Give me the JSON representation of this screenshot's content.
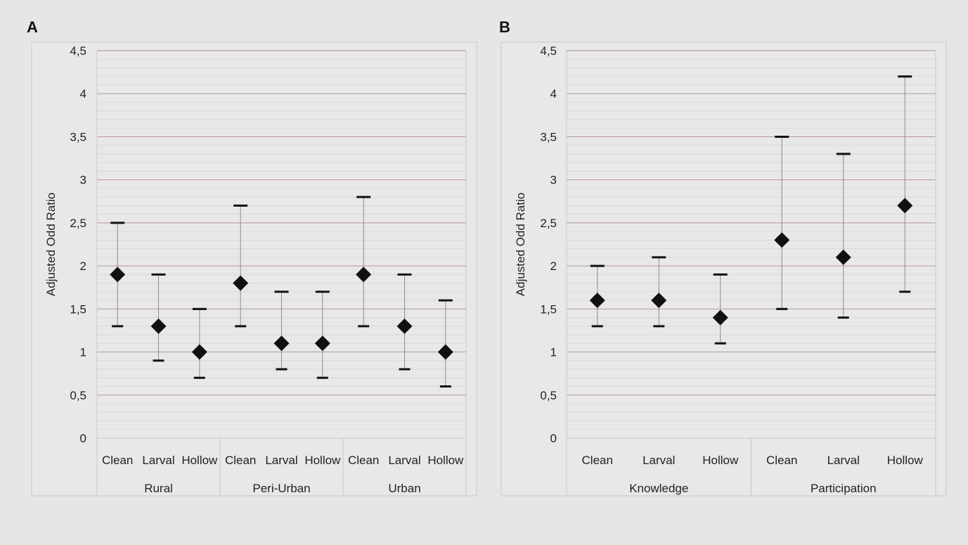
{
  "chart_data": [
    {
      "panel_label": "A",
      "type": "scatter",
      "chart_style": "point-with-range",
      "ylabel": "Adjusted Odd Ratio",
      "ylim": [
        0,
        4.5
      ],
      "major_ticks": [
        "0",
        "0,5",
        "1",
        "1,5",
        "2",
        "2,5",
        "3",
        "3,5",
        "4",
        "4,5"
      ],
      "grid": true,
      "groups": [
        {
          "name": "Rural",
          "points": [
            {
              "label": "Clean",
              "value": 1.9,
              "lower": 1.3,
              "upper": 2.5
            },
            {
              "label": "Larval",
              "value": 1.3,
              "lower": 0.9,
              "upper": 1.9
            },
            {
              "label": "Hollow",
              "value": 1.0,
              "lower": 0.7,
              "upper": 1.5
            }
          ]
        },
        {
          "name": "Peri-Urban",
          "points": [
            {
              "label": "Clean",
              "value": 1.8,
              "lower": 1.3,
              "upper": 2.7
            },
            {
              "label": "Larval",
              "value": 1.1,
              "lower": 0.8,
              "upper": 1.7
            },
            {
              "label": "Hollow",
              "value": 1.1,
              "lower": 0.7,
              "upper": 1.7
            }
          ]
        },
        {
          "name": "Urban",
          "points": [
            {
              "label": "Clean",
              "value": 1.9,
              "lower": 1.3,
              "upper": 2.8
            },
            {
              "label": "Larval",
              "value": 1.3,
              "lower": 0.8,
              "upper": 1.9
            },
            {
              "label": "Hollow",
              "value": 1.0,
              "lower": 0.6,
              "upper": 1.6
            }
          ]
        }
      ]
    },
    {
      "panel_label": "B",
      "type": "scatter",
      "chart_style": "point-with-range",
      "ylabel": "Adjusted Odd Ratio",
      "ylim": [
        0,
        4.5
      ],
      "major_ticks": [
        "0",
        "0,5",
        "1",
        "1,5",
        "2",
        "2,5",
        "3",
        "3,5",
        "4",
        "4,5"
      ],
      "grid": true,
      "groups": [
        {
          "name": "Knowledge",
          "points": [
            {
              "label": "Clean",
              "value": 1.6,
              "lower": 1.3,
              "upper": 2.0
            },
            {
              "label": "Larval",
              "value": 1.6,
              "lower": 1.3,
              "upper": 2.1
            },
            {
              "label": "Hollow",
              "value": 1.4,
              "lower": 1.1,
              "upper": 1.9
            }
          ]
        },
        {
          "name": "Participation",
          "points": [
            {
              "label": "Clean",
              "value": 2.3,
              "lower": 1.5,
              "upper": 3.5
            },
            {
              "label": "Larval",
              "value": 2.1,
              "lower": 1.4,
              "upper": 3.3
            },
            {
              "label": "Hollow",
              "value": 2.7,
              "lower": 1.7,
              "upper": 4.2
            }
          ]
        }
      ]
    }
  ],
  "colors": {
    "page_background": "#e6e6e6",
    "plot_background": "#e8e8e8",
    "frame": "#c8c8c8",
    "minor_grid": "#d6d6d6",
    "major_grid": "#b08a92",
    "marker": "#111111",
    "range_line": "#8c8c8c",
    "text": "#222222"
  }
}
